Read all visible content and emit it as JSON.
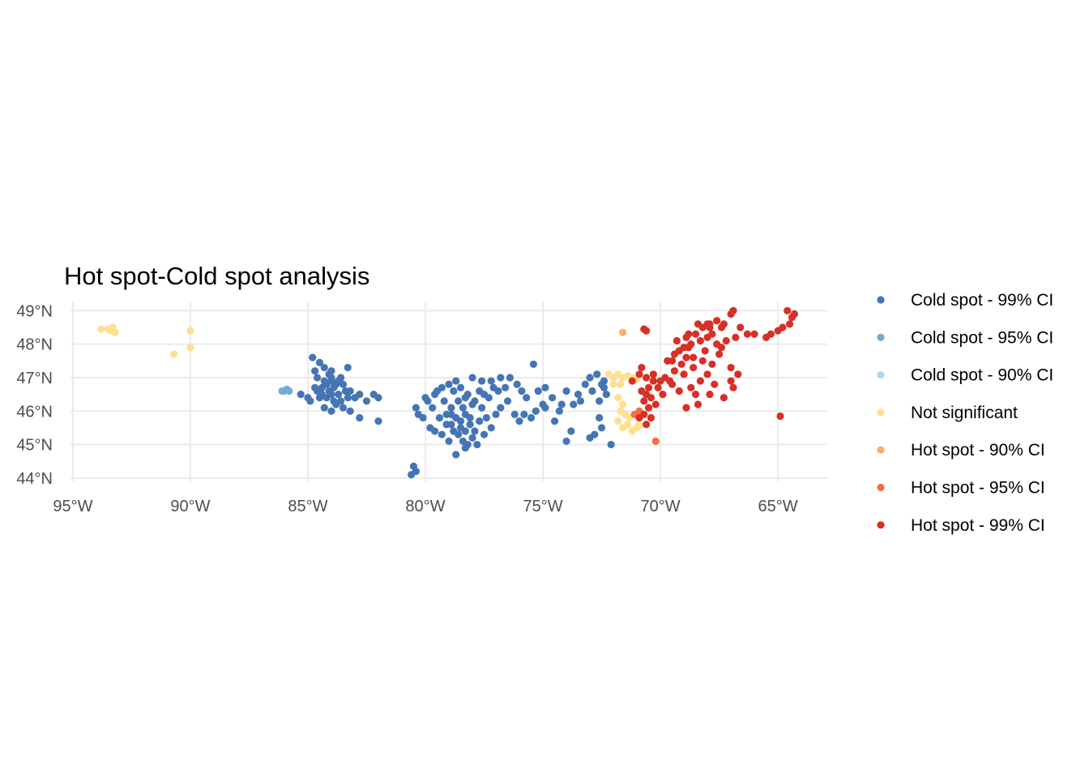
{
  "chart_data": {
    "type": "scatter",
    "title": "Hot spot-Cold spot analysis",
    "xlabel": "",
    "ylabel": "",
    "xlim": [
      -95.1,
      -62.9
    ],
    "ylim": [
      43.9,
      49.25
    ],
    "x_ticks": [
      -95,
      -90,
      -85,
      -80,
      -75,
      -70,
      -65
    ],
    "x_tick_labels": [
      "95°W",
      "90°W",
      "85°W",
      "80°W",
      "75°W",
      "70°W",
      "65°W"
    ],
    "y_ticks": [
      44,
      45,
      46,
      47,
      48,
      49
    ],
    "y_tick_labels": [
      "44°N",
      "45°N",
      "46°N",
      "47°N",
      "48°N",
      "49°N"
    ],
    "grid": true,
    "legend_position": "right",
    "series": [
      {
        "name": "Cold spot - 99% CI",
        "color": "#4575b4",
        "points": [
          [
            -84.8,
            47.6
          ],
          [
            -84.5,
            47.45
          ],
          [
            -84.3,
            47.3
          ],
          [
            -84.0,
            47.2
          ],
          [
            -83.3,
            47.3
          ],
          [
            -84.6,
            47.0
          ],
          [
            -84.3,
            46.9
          ],
          [
            -84.0,
            46.9
          ],
          [
            -83.8,
            46.8
          ],
          [
            -83.5,
            46.8
          ],
          [
            -84.7,
            46.7
          ],
          [
            -84.4,
            46.7
          ],
          [
            -84.1,
            46.6
          ],
          [
            -83.9,
            46.7
          ],
          [
            -83.7,
            46.5
          ],
          [
            -84.5,
            46.4
          ],
          [
            -84.2,
            46.4
          ],
          [
            -83.9,
            46.3
          ],
          [
            -83.6,
            46.3
          ],
          [
            -83.3,
            46.4
          ],
          [
            -84.9,
            46.3
          ],
          [
            -85.3,
            46.5
          ],
          [
            -85.0,
            46.4
          ],
          [
            -84.3,
            46.1
          ],
          [
            -84.0,
            46.0
          ],
          [
            -83.5,
            46.1
          ],
          [
            -83.2,
            46.6
          ],
          [
            -83.0,
            46.4
          ],
          [
            -82.8,
            46.5
          ],
          [
            -82.5,
            46.3
          ],
          [
            -82.2,
            46.5
          ],
          [
            -82.0,
            46.4
          ],
          [
            -83.2,
            46.0
          ],
          [
            -82.8,
            45.8
          ],
          [
            -82.0,
            45.7
          ],
          [
            -84.0,
            47.0
          ],
          [
            -83.6,
            47.0
          ],
          [
            -84.7,
            47.2
          ],
          [
            -84.2,
            46.8
          ],
          [
            -84.4,
            46.5
          ],
          [
            -83.8,
            46.2
          ],
          [
            -84.0,
            46.5
          ],
          [
            -83.4,
            46.6
          ],
          [
            -84.1,
            47.1
          ],
          [
            -84.6,
            46.6
          ],
          [
            -83.7,
            46.9
          ],
          [
            -80.5,
            44.35
          ],
          [
            -80.6,
            44.1
          ],
          [
            -80.4,
            44.2
          ],
          [
            -80.4,
            46.1
          ],
          [
            -80.1,
            45.8
          ],
          [
            -80.0,
            46.4
          ],
          [
            -79.8,
            45.5
          ],
          [
            -79.5,
            46.6
          ],
          [
            -79.3,
            46.7
          ],
          [
            -79.0,
            46.8
          ],
          [
            -78.8,
            46.6
          ],
          [
            -78.5,
            46.7
          ],
          [
            -78.2,
            46.5
          ],
          [
            -78.0,
            47.0
          ],
          [
            -77.6,
            46.9
          ],
          [
            -77.5,
            46.5
          ],
          [
            -77.2,
            46.9
          ],
          [
            -76.8,
            47.0
          ],
          [
            -76.4,
            47.0
          ],
          [
            -76.1,
            46.8
          ],
          [
            -75.9,
            46.6
          ],
          [
            -75.7,
            46.4
          ],
          [
            -75.4,
            47.4
          ],
          [
            -75.2,
            46.6
          ],
          [
            -75.0,
            46.2
          ],
          [
            -74.6,
            46.4
          ],
          [
            -74.2,
            46.2
          ],
          [
            -74.0,
            46.6
          ],
          [
            -73.7,
            46.2
          ],
          [
            -73.5,
            46.5
          ],
          [
            -73.2,
            46.8
          ],
          [
            -73.0,
            47.0
          ],
          [
            -72.9,
            46.6
          ],
          [
            -72.5,
            46.8
          ],
          [
            -72.3,
            46.5
          ],
          [
            -72.6,
            45.8
          ],
          [
            -72.8,
            45.3
          ],
          [
            -73.0,
            45.2
          ],
          [
            -73.8,
            45.4
          ],
          [
            -74.0,
            45.1
          ],
          [
            -79.4,
            45.8
          ],
          [
            -79.1,
            45.9
          ],
          [
            -78.9,
            45.6
          ],
          [
            -78.7,
            45.8
          ],
          [
            -78.5,
            45.7
          ],
          [
            -78.3,
            45.9
          ],
          [
            -78.1,
            45.6
          ],
          [
            -77.9,
            45.4
          ],
          [
            -78.6,
            45.3
          ],
          [
            -78.4,
            45.1
          ],
          [
            -78.2,
            45.0
          ],
          [
            -78.0,
            45.2
          ],
          [
            -78.7,
            44.7
          ],
          [
            -78.3,
            44.9
          ],
          [
            -77.8,
            45.0
          ],
          [
            -77.5,
            45.3
          ],
          [
            -77.2,
            45.5
          ],
          [
            -77.0,
            45.9
          ],
          [
            -76.8,
            46.1
          ],
          [
            -76.5,
            46.3
          ],
          [
            -76.2,
            45.9
          ],
          [
            -76.0,
            45.7
          ],
          [
            -75.8,
            45.9
          ],
          [
            -75.5,
            45.8
          ],
          [
            -75.3,
            46.0
          ],
          [
            -74.9,
            46.1
          ],
          [
            -74.5,
            45.7
          ],
          [
            -74.3,
            46.0
          ],
          [
            -79.7,
            46.1
          ],
          [
            -79.9,
            46.3
          ],
          [
            -80.3,
            45.9
          ],
          [
            -79.2,
            46.3
          ],
          [
            -78.9,
            46.1
          ],
          [
            -78.6,
            46.3
          ],
          [
            -78.3,
            46.4
          ],
          [
            -77.9,
            46.3
          ],
          [
            -77.6,
            46.1
          ],
          [
            -77.3,
            46.4
          ],
          [
            -78.8,
            45.4
          ],
          [
            -79.0,
            45.1
          ],
          [
            -79.3,
            45.3
          ],
          [
            -78.5,
            45.5
          ],
          [
            -78.1,
            45.8
          ],
          [
            -77.7,
            45.7
          ],
          [
            -72.6,
            46.3
          ],
          [
            -72.4,
            46.9
          ],
          [
            -72.7,
            47.1
          ],
          [
            -72.4,
            46.7
          ],
          [
            -79.6,
            46.5
          ],
          [
            -78.4,
            46.1
          ],
          [
            -78.0,
            46.2
          ],
          [
            -77.4,
            45.8
          ],
          [
            -79.1,
            45.6
          ],
          [
            -78.3,
            45.4
          ],
          [
            -77.7,
            46.6
          ],
          [
            -76.9,
            46.6
          ],
          [
            -76.6,
            46.7
          ],
          [
            -78.7,
            46.9
          ],
          [
            -79.6,
            45.4
          ],
          [
            -78.9,
            45.9
          ],
          [
            -77.1,
            46.7
          ],
          [
            -73.4,
            46.3
          ],
          [
            -74.9,
            46.7
          ],
          [
            -72.1,
            45.0
          ],
          [
            -72.5,
            45.5
          ]
        ]
      },
      {
        "name": "Cold spot - 95% CI",
        "color": "#74add1",
        "points": [
          [
            -86.1,
            46.6
          ],
          [
            -86.0,
            46.6
          ],
          [
            -85.9,
            46.65
          ],
          [
            -85.8,
            46.6
          ]
        ]
      },
      {
        "name": "Cold spot - 90% CI",
        "color": "#abd9e9",
        "points": []
      },
      {
        "name": "Not significant",
        "color": "#fee090",
        "points": [
          [
            -93.8,
            48.45
          ],
          [
            -93.4,
            48.4
          ],
          [
            -93.3,
            48.5
          ],
          [
            -93.2,
            48.35
          ],
          [
            -93.5,
            48.45
          ],
          [
            -93.3,
            48.42
          ],
          [
            -90.0,
            48.4
          ],
          [
            -90.0,
            47.9
          ],
          [
            -90.7,
            47.7
          ],
          [
            -72.2,
            47.1
          ],
          [
            -72.0,
            47.0
          ],
          [
            -71.8,
            47.1
          ],
          [
            -71.6,
            47.0
          ],
          [
            -71.4,
            47.05
          ],
          [
            -71.2,
            47.0
          ],
          [
            -71.0,
            46.95
          ],
          [
            -72.0,
            46.8
          ],
          [
            -71.7,
            46.8
          ],
          [
            -71.8,
            46.4
          ],
          [
            -71.6,
            46.2
          ],
          [
            -71.7,
            46.0
          ],
          [
            -71.5,
            45.9
          ],
          [
            -71.8,
            45.7
          ],
          [
            -71.4,
            45.6
          ],
          [
            -71.2,
            45.4
          ],
          [
            -71.0,
            45.5
          ],
          [
            -71.3,
            45.8
          ],
          [
            -70.9,
            45.6
          ],
          [
            -71.6,
            45.5
          ]
        ]
      },
      {
        "name": "Hot spot - 90% CI",
        "color": "#fdae61",
        "points": [
          [
            -71.6,
            48.35
          ]
        ]
      },
      {
        "name": "Hot spot - 95% CI",
        "color": "#f46d43",
        "points": [
          [
            -70.9,
            46.0
          ],
          [
            -70.2,
            45.1
          ],
          [
            -71.1,
            45.9
          ]
        ]
      },
      {
        "name": "Hot spot - 99% CI",
        "color": "#d73027",
        "points": [
          [
            -70.7,
            48.45
          ],
          [
            -70.6,
            48.4
          ],
          [
            -70.9,
            47.1
          ],
          [
            -70.6,
            47.0
          ],
          [
            -70.3,
            47.1
          ],
          [
            -70.0,
            46.9
          ],
          [
            -70.5,
            46.7
          ],
          [
            -70.8,
            46.6
          ],
          [
            -70.4,
            46.4
          ],
          [
            -70.7,
            46.3
          ],
          [
            -70.5,
            46.1
          ],
          [
            -70.7,
            45.9
          ],
          [
            -70.4,
            45.8
          ],
          [
            -70.2,
            46.2
          ],
          [
            -69.9,
            46.5
          ],
          [
            -69.6,
            46.9
          ],
          [
            -69.4,
            47.2
          ],
          [
            -69.1,
            47.4
          ],
          [
            -68.9,
            47.6
          ],
          [
            -69.2,
            47.8
          ],
          [
            -68.7,
            48.0
          ],
          [
            -68.9,
            48.2
          ],
          [
            -68.5,
            48.3
          ],
          [
            -68.2,
            48.5
          ],
          [
            -67.9,
            48.6
          ],
          [
            -67.6,
            48.7
          ],
          [
            -67.3,
            48.6
          ],
          [
            -67.0,
            48.9
          ],
          [
            -66.9,
            49.0
          ],
          [
            -66.6,
            48.5
          ],
          [
            -66.3,
            48.3
          ],
          [
            -66.0,
            48.3
          ],
          [
            -67.2,
            48.1
          ],
          [
            -67.5,
            47.7
          ],
          [
            -67.8,
            47.4
          ],
          [
            -68.0,
            47.1
          ],
          [
            -67.7,
            46.8
          ],
          [
            -68.3,
            46.9
          ],
          [
            -68.7,
            46.7
          ],
          [
            -69.2,
            46.6
          ],
          [
            -68.5,
            46.5
          ],
          [
            -67.9,
            46.5
          ],
          [
            -67.3,
            46.4
          ],
          [
            -66.9,
            46.7
          ],
          [
            -67.0,
            47.3
          ],
          [
            -67.4,
            47.9
          ],
          [
            -68.0,
            48.2
          ],
          [
            -68.6,
            47.6
          ],
          [
            -69.0,
            47.1
          ],
          [
            -69.5,
            46.8
          ],
          [
            -68.4,
            46.2
          ],
          [
            -68.9,
            46.1
          ],
          [
            -65.5,
            48.2
          ],
          [
            -65.3,
            48.3
          ],
          [
            -65.0,
            48.4
          ],
          [
            -64.8,
            48.5
          ],
          [
            -64.5,
            48.6
          ],
          [
            -64.4,
            48.8
          ],
          [
            -64.6,
            49.0
          ],
          [
            -64.3,
            48.9
          ],
          [
            -64.9,
            45.85
          ],
          [
            -68.8,
            48.3
          ],
          [
            -68.3,
            48.1
          ],
          [
            -67.8,
            48.3
          ],
          [
            -67.6,
            48.0
          ],
          [
            -69.3,
            48.1
          ],
          [
            -69.5,
            47.5
          ],
          [
            -68.1,
            47.8
          ],
          [
            -67.0,
            46.9
          ],
          [
            -66.7,
            47.1
          ],
          [
            -66.8,
            48.2
          ],
          [
            -68.4,
            48.6
          ],
          [
            -69.0,
            47.9
          ],
          [
            -68.6,
            47.3
          ],
          [
            -70.1,
            46.7
          ],
          [
            -69.8,
            47.0
          ],
          [
            -70.8,
            47.3
          ],
          [
            -71.2,
            46.9
          ],
          [
            -70.6,
            45.6
          ],
          [
            -70.9,
            45.8
          ],
          [
            -70.6,
            46.5
          ],
          [
            -70.3,
            46.9
          ],
          [
            -67.9,
            48.5
          ],
          [
            -67.4,
            48.5
          ],
          [
            -68.2,
            47.5
          ],
          [
            -69.7,
            47.5
          ],
          [
            -68.0,
            48.6
          ],
          [
            -68.8,
            47.9
          ],
          [
            -69.4,
            47.7
          ]
        ]
      }
    ]
  }
}
